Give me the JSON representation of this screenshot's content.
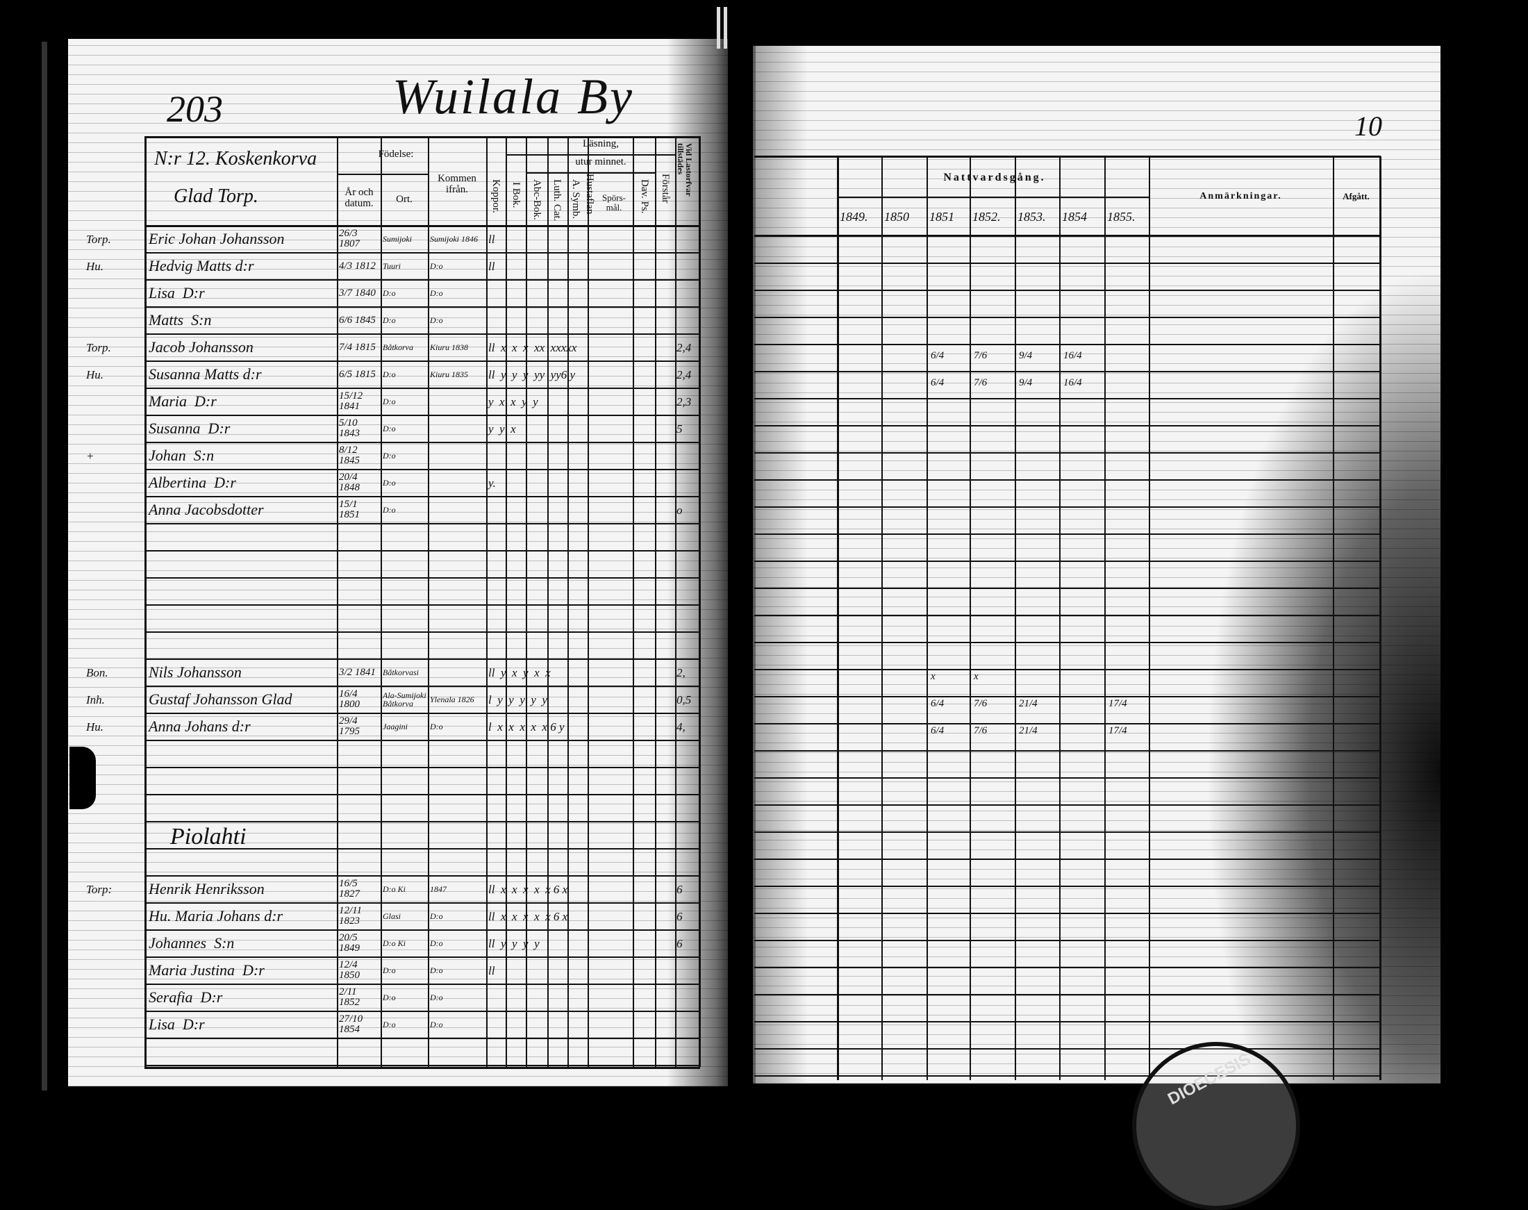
{
  "left_page": {
    "page_number": "203",
    "village": "Wuilala By",
    "homestead": "N:r 12. Koskenkorva",
    "homestead_sub": "Glad Torp.",
    "headers": {
      "fodelse": "Födelse:",
      "ar_datum": "År och datum.",
      "ort": "Ort.",
      "kommen": "Kommen ifrån.",
      "koppor": "Koppor.",
      "lasning": "Läsning,",
      "i_bok": "I Bok.",
      "utur_minnet": "utur minnet.",
      "abc_bok": "Abc-Bok.",
      "luth_cat": "Luth. Cat.",
      "a_symb": "A. Symb.",
      "hustaflan": "Hustaflan",
      "sporsmal": "Spörs-mål.",
      "dav_ps": "Dav. Ps.",
      "forstar": "Förstår",
      "lastorfvar": "Vid Lastorfvar tillstädes"
    },
    "section_piolahti": "Piolahti",
    "entries": [
      {
        "margin": "Torp.",
        "name": "Eric Johan Johansson",
        "date": "26/3 1807",
        "place": "Sumijoki",
        "from": "Sumijoki 1846",
        "marks": "ll",
        "note": ""
      },
      {
        "margin": "Hu.",
        "name": "Hedvig Matts d:r",
        "date": "4/3 1812",
        "place": "Tuuri",
        "from": "D:o",
        "marks": "ll",
        "note": ""
      },
      {
        "margin": "",
        "name": "Lisa  D:r",
        "date": "3/7 1840",
        "place": "D:o",
        "from": "D:o",
        "marks": "",
        "note": ""
      },
      {
        "margin": "",
        "name": "Matts  S:n",
        "date": "6/6 1845",
        "place": "D:o",
        "from": "D:o",
        "marks": "",
        "note": ""
      },
      {
        "margin": "Torp.",
        "name": "Jacob Johansson",
        "date": "7/4 1815",
        "place": "Båtkorva",
        "from": "Kiuru 1838",
        "marks": "ll  x  x  x  xx  xxxxx",
        "note": "2,4"
      },
      {
        "margin": "Hu.",
        "name": "Susanna Matts d:r",
        "date": "6/5 1815",
        "place": "D:o",
        "from": "Kiuru 1835",
        "marks": "ll  y  y  y  yy  yy6 y",
        "note": "2,4"
      },
      {
        "margin": "",
        "name": "Maria  D:r",
        "date": "15/12 1841",
        "place": "D:o",
        "from": "",
        "marks": "y  x  x  y  y",
        "note": "2,3"
      },
      {
        "margin": "",
        "name": "Susanna  D:r",
        "date": "5/10 1843",
        "place": "D:o",
        "from": "",
        "marks": "y  y  x",
        "note": "5"
      },
      {
        "margin": "+",
        "name": "Johan  S:n",
        "date": "8/12 1845",
        "place": "D:o",
        "from": "",
        "marks": "",
        "note": ""
      },
      {
        "margin": "",
        "name": "Albertina  D:r",
        "date": "20/4 1848",
        "place": "D:o",
        "from": "",
        "marks": "y.",
        "note": ""
      },
      {
        "margin": "",
        "name": "Anna Jacobsdotter",
        "date": "15/1 1851",
        "place": "D:o",
        "from": "",
        "marks": "",
        "note": "o"
      }
    ],
    "entries_group2": [
      {
        "margin": "Bon.",
        "name": "Nils Johansson",
        "date": "3/2 1841",
        "place": "Båtkorvasi",
        "from": "",
        "marks": "ll  y  x  y  x  x",
        "note": "2,"
      },
      {
        "margin": "Inh.",
        "name": "Gustaf Johansson Glad",
        "date": "16/4 1800",
        "place": "Ala-Sumijoki Båtkorva",
        "from": "Ylenala 1826",
        "marks": "l  y  y  y  y  y",
        "note": "0,5"
      },
      {
        "margin": "Hu.",
        "name": "Anna Johans d:r",
        "date": "29/4 1795",
        "place": "Jaagini",
        "from": "D:o",
        "marks": "l  x  x  x  x  x 6 y",
        "note": "4,"
      }
    ],
    "entries_piolahti": [
      {
        "margin": "Torp:",
        "name": "Henrik Henriksson",
        "date": "16/5 1827",
        "place": "D:o Ki",
        "from": "1847",
        "marks": "ll  x  x  x  x  x 6 x",
        "note": "6"
      },
      {
        "margin": "",
        "name": "Hu. Maria Johans d:r",
        "date": "12/11 1823",
        "place": "Glasi",
        "from": "D:o",
        "marks": "ll  x  x  x  x  x 6 x",
        "note": "6"
      },
      {
        "margin": "",
        "name": "Johannes  S:n",
        "date": "20/5 1849",
        "place": "D:o Ki",
        "from": "D:o",
        "marks": "ll  y  y  y  y",
        "note": "6"
      },
      {
        "margin": "",
        "name": "Maria Justina  D:r",
        "date": "12/4 1850",
        "place": "D:o",
        "from": "D:o",
        "marks": "ll",
        "note": ""
      },
      {
        "margin": "",
        "name": "Serafia  D:r",
        "date": "2/11 1852",
        "place": "D:o",
        "from": "D:o",
        "marks": "",
        "note": ""
      },
      {
        "margin": "",
        "name": "Lisa  D:r",
        "date": "27/10 1854",
        "place": "D:o",
        "from": "D:o",
        "marks": "",
        "note": ""
      }
    ]
  },
  "right_page": {
    "page_number": "10",
    "nattvardsgang": "Nattvardsgång.",
    "years": [
      "1849.",
      "1850",
      "1851",
      "1852.",
      "1853.",
      "1854",
      "1855."
    ],
    "anmarkningar": "Anmärkningar.",
    "afgatt": "Afgått.",
    "communion_marks": [
      {
        "row": 5,
        "cells": [
          "",
          "",
          "6/4",
          "7/6",
          "9/4",
          "16/4",
          ""
        ]
      },
      {
        "row": 6,
        "cells": [
          "",
          "",
          "6/4",
          "7/6",
          "9/4",
          "16/4",
          ""
        ]
      },
      {
        "row": 13,
        "cells": [
          "",
          "",
          "x",
          "x",
          "",
          "",
          ""
        ]
      },
      {
        "row": 14,
        "cells": [
          "",
          "",
          "6/4",
          "7/6",
          "21/4",
          "",
          "17/4"
        ]
      },
      {
        "row": 15,
        "cells": [
          "",
          "",
          "6/4",
          "7/6",
          "21/4",
          "",
          "17/4"
        ]
      }
    ]
  },
  "stamp": {
    "text": "DIOECESIS"
  }
}
